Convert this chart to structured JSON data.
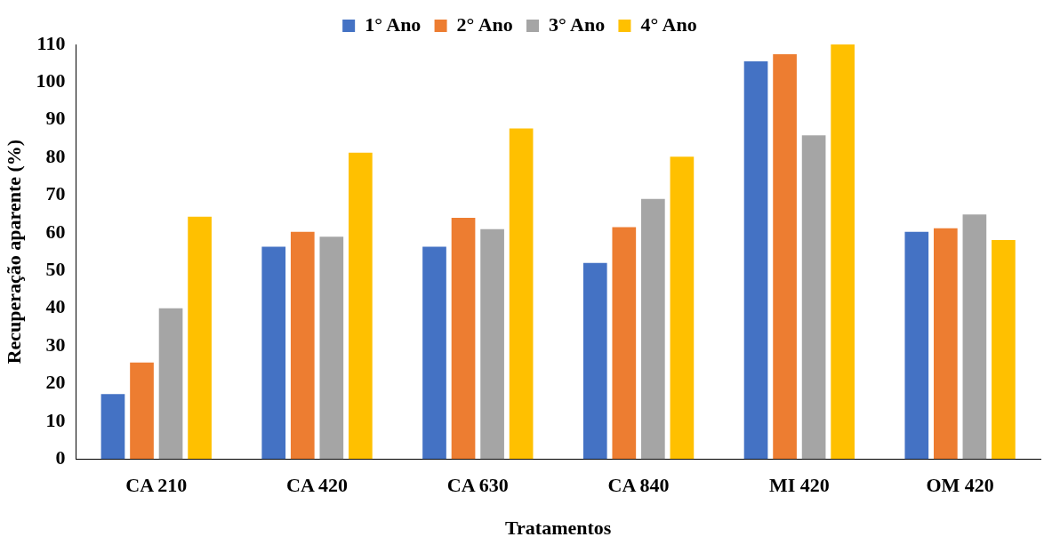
{
  "chart_data": {
    "type": "bar",
    "xlabel": "Tratamentos",
    "ylabel": "Recuperação aparente (%)",
    "categories": [
      "CA 210",
      "CA 420",
      "CA 630",
      "CA 840",
      "MI 420",
      "OM 420"
    ],
    "series": [
      {
        "name": "1° Ano",
        "color": "#4472c4",
        "values": [
          17.2,
          56.3,
          56.3,
          52,
          105.5,
          60.3
        ]
      },
      {
        "name": "2° Ano",
        "color": "#ed7d31",
        "values": [
          25.6,
          60.3,
          64,
          61.5,
          107.4,
          61.2
        ]
      },
      {
        "name": "3° Ano",
        "color": "#a5a5a5",
        "values": [
          40,
          59,
          61,
          69,
          85.9,
          64.9
        ]
      },
      {
        "name": "4° Ano",
        "color": "#ffc000",
        "values": [
          64.3,
          81.3,
          87.7,
          80.2,
          110,
          58.1
        ]
      }
    ],
    "ylim": [
      0,
      110
    ],
    "yticks": [
      0,
      10,
      20,
      30,
      40,
      50,
      60,
      70,
      80,
      90,
      100,
      110
    ],
    "grid": false,
    "legend": "top"
  }
}
